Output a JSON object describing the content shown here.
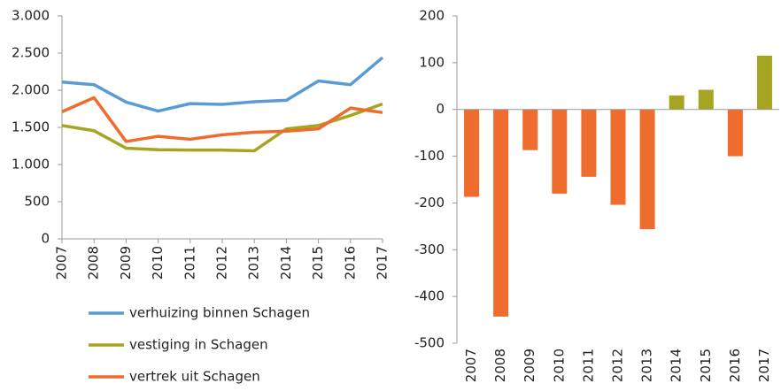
{
  "chart_data": [
    {
      "type": "line",
      "categories": [
        "2007",
        "2008",
        "2009",
        "2010",
        "2011",
        "2012",
        "2013",
        "2014",
        "2015",
        "2016",
        "2017"
      ],
      "series": [
        {
          "name": "verhuizing binnen Schagen",
          "color": "#5b9bd5",
          "values": [
            2110,
            2075,
            1840,
            1720,
            1820,
            1810,
            1845,
            1865,
            2125,
            2075,
            2440
          ]
        },
        {
          "name": "vestiging in Schagen",
          "color": "#a5a521",
          "values": [
            1525,
            1455,
            1220,
            1200,
            1195,
            1195,
            1185,
            1480,
            1525,
            1660,
            1815
          ]
        },
        {
          "name": "vertrek uit Schagen",
          "color": "#ed6c2e",
          "values": [
            1710,
            1900,
            1310,
            1380,
            1340,
            1400,
            1435,
            1450,
            1480,
            1760,
            1700
          ]
        }
      ],
      "ylim": [
        0,
        3000
      ],
      "yticks": [
        0,
        500,
        {
          "value": 1000,
          "label": "1.000"
        },
        {
          "value": 1500,
          "label": "1.500"
        },
        {
          "value": 2000,
          "label": "2.000"
        },
        {
          "value": 2500,
          "label": "2.500"
        },
        {
          "value": 3000,
          "label": "3.000"
        }
      ]
    },
    {
      "type": "bar",
      "categories": [
        "2007",
        "2008",
        "2009",
        "2010",
        "2011",
        "2012",
        "2013",
        "2014",
        "2015",
        "2016",
        "2017"
      ],
      "values": [
        -187,
        -443,
        -87,
        -180,
        -144,
        -204,
        -256,
        30,
        42,
        -100,
        115
      ],
      "colors": [
        "#ed6c2e",
        "#ed6c2e",
        "#ed6c2e",
        "#ed6c2e",
        "#ed6c2e",
        "#ed6c2e",
        "#ed6c2e",
        "#a5a521",
        "#a5a521",
        "#ed6c2e",
        "#a5a521"
      ],
      "ylim": [
        -500,
        200
      ],
      "yticks": [
        -500,
        -400,
        -300,
        -200,
        -100,
        0,
        100,
        200
      ]
    }
  ]
}
